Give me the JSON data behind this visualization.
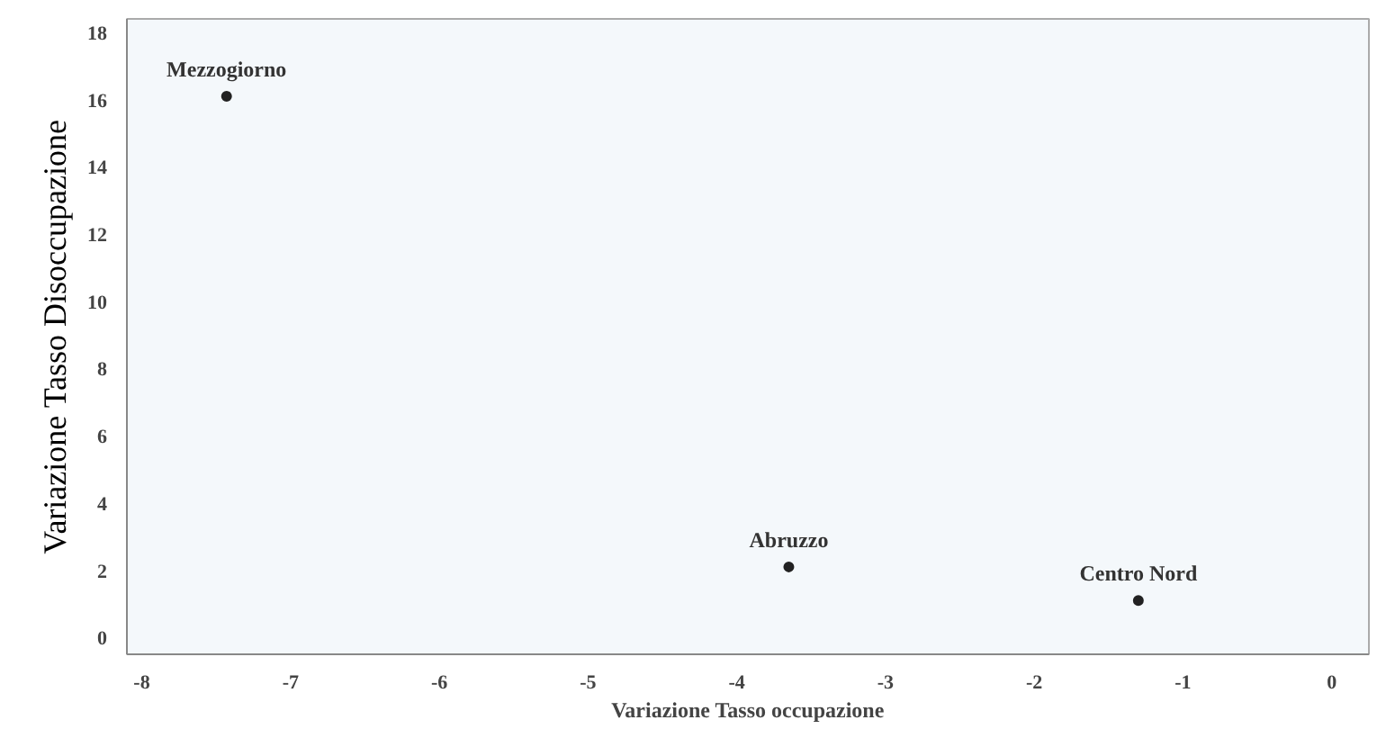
{
  "chart_data": {
    "type": "scatter",
    "xlabel": "Variazione Tasso occupazione",
    "ylabel": "Variazione Tasso Disoccupazione",
    "x": [
      -7.43,
      -3.65,
      -1.3
    ],
    "series": [
      {
        "color": "#222222",
        "values": [
          16.1,
          2.1,
          1.1
        ]
      }
    ],
    "annotations": [
      {
        "text": "Mezzogiorno",
        "x": -7.43,
        "y": 16.1
      },
      {
        "text": "Abruzzo",
        "x": -3.65,
        "y": 2.1
      },
      {
        "text": "Centro Nord",
        "x": -1.3,
        "y": 1.1
      }
    ],
    "xlim": [
      -8.1,
      0.25
    ],
    "ylim": [
      -0.5,
      18.4
    ],
    "xticks": [
      -8,
      -7,
      -6,
      -5,
      -4,
      -3,
      -2,
      -1,
      0
    ],
    "yticks": [
      0,
      2,
      4,
      6,
      8,
      10,
      12,
      14,
      16,
      18
    ],
    "marker": "circle",
    "grid": false
  }
}
